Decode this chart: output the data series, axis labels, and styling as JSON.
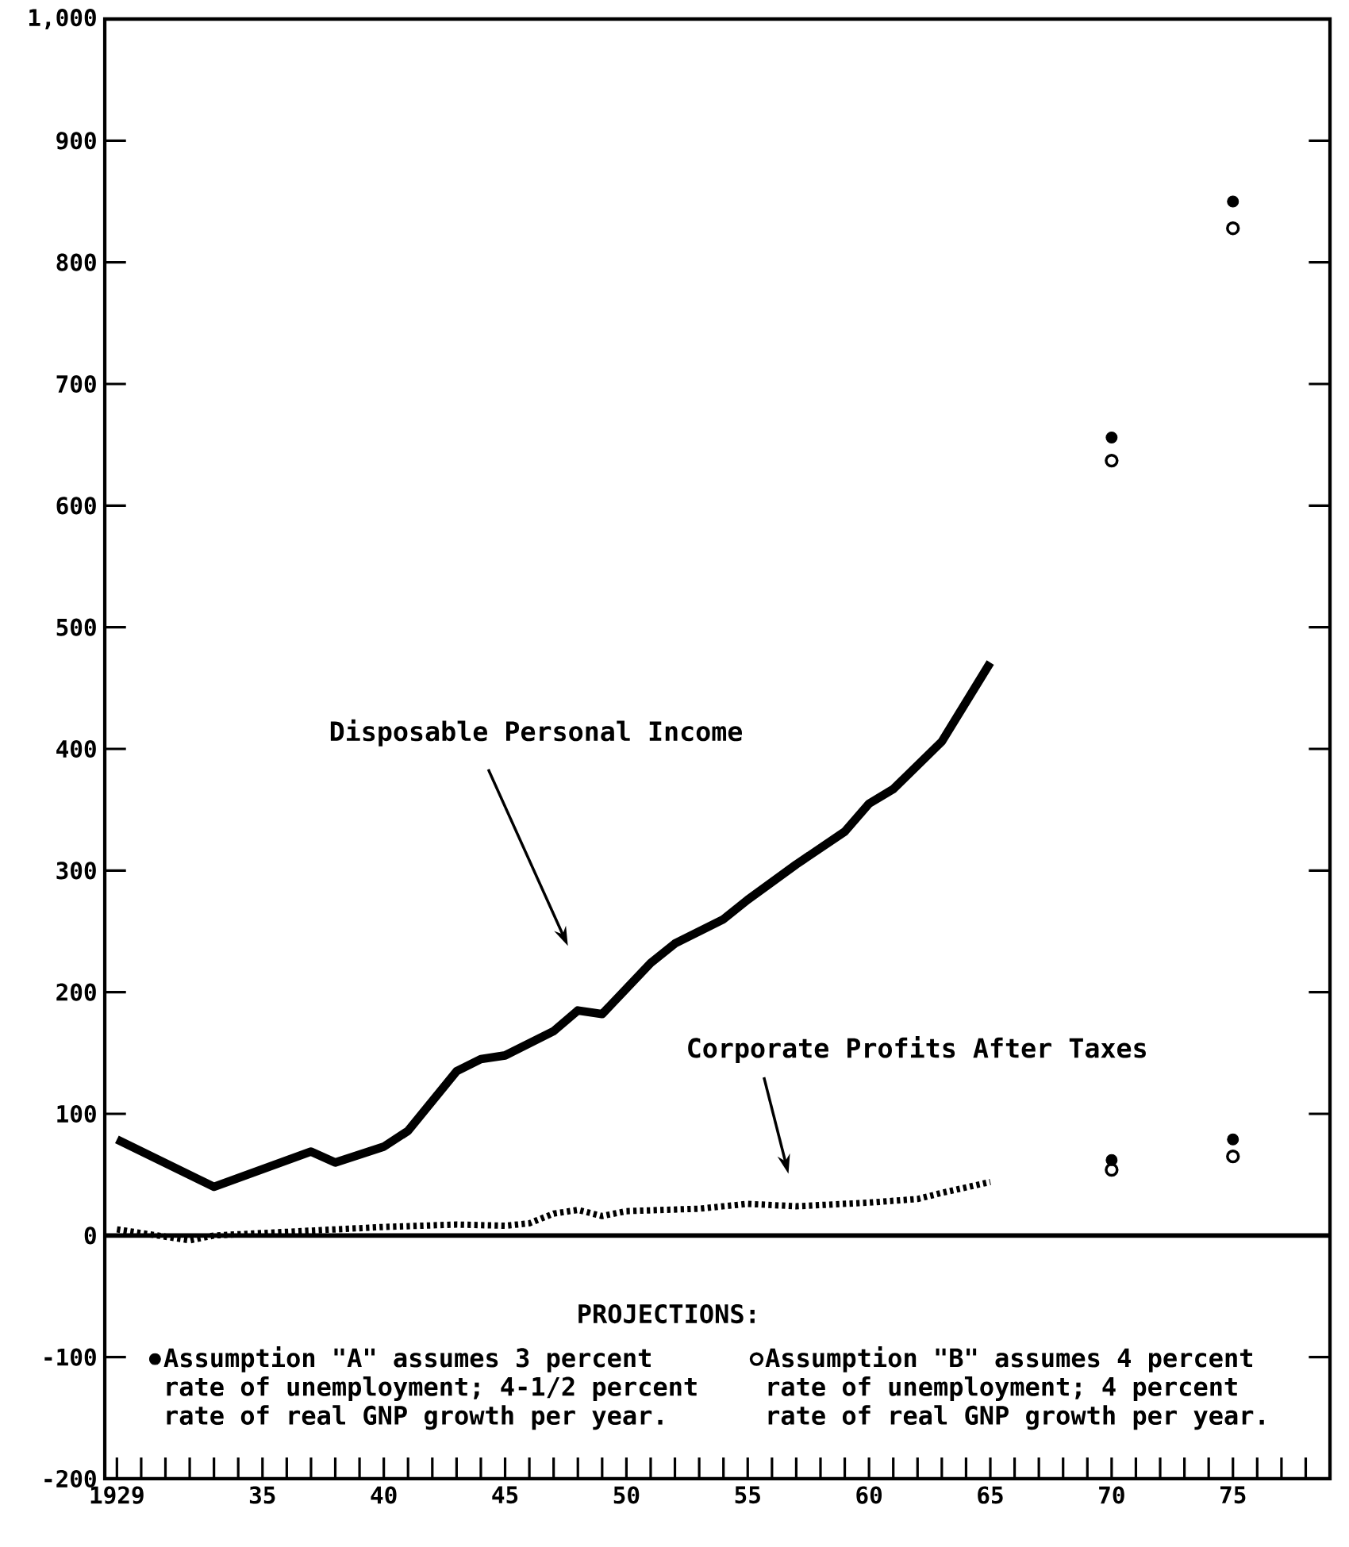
{
  "chart_data": {
    "type": "line",
    "xlim": [
      1928.5,
      1979
    ],
    "xticks": [
      {
        "value": 1929,
        "label": "1929"
      },
      {
        "value": 1930,
        "label": null
      },
      {
        "value": 1931,
        "label": null
      },
      {
        "value": 1932,
        "label": null
      },
      {
        "value": 1933,
        "label": null
      },
      {
        "value": 1934,
        "label": null
      },
      {
        "value": 1935,
        "label": "35"
      },
      {
        "value": 1936,
        "label": null
      },
      {
        "value": 1937,
        "label": null
      },
      {
        "value": 1938,
        "label": null
      },
      {
        "value": 1939,
        "label": null
      },
      {
        "value": 1940,
        "label": "40"
      },
      {
        "value": 1941,
        "label": null
      },
      {
        "value": 1942,
        "label": null
      },
      {
        "value": 1943,
        "label": null
      },
      {
        "value": 1944,
        "label": null
      },
      {
        "value": 1945,
        "label": "45"
      },
      {
        "value": 1946,
        "label": null
      },
      {
        "value": 1947,
        "label": null
      },
      {
        "value": 1948,
        "label": null
      },
      {
        "value": 1949,
        "label": null
      },
      {
        "value": 1950,
        "label": "50"
      },
      {
        "value": 1951,
        "label": null
      },
      {
        "value": 1952,
        "label": null
      },
      {
        "value": 1953,
        "label": null
      },
      {
        "value": 1954,
        "label": null
      },
      {
        "value": 1955,
        "label": "55"
      },
      {
        "value": 1956,
        "label": null
      },
      {
        "value": 1957,
        "label": null
      },
      {
        "value": 1958,
        "label": null
      },
      {
        "value": 1959,
        "label": null
      },
      {
        "value": 1960,
        "label": "60"
      },
      {
        "value": 1961,
        "label": null
      },
      {
        "value": 1962,
        "label": null
      },
      {
        "value": 1963,
        "label": null
      },
      {
        "value": 1964,
        "label": null
      },
      {
        "value": 1965,
        "label": "65"
      },
      {
        "value": 1966,
        "label": null
      },
      {
        "value": 1967,
        "label": null
      },
      {
        "value": 1968,
        "label": null
      },
      {
        "value": 1969,
        "label": null
      },
      {
        "value": 1970,
        "label": "70"
      },
      {
        "value": 1971,
        "label": null
      },
      {
        "value": 1972,
        "label": null
      },
      {
        "value": 1973,
        "label": null
      },
      {
        "value": 1974,
        "label": null
      },
      {
        "value": 1975,
        "label": "75"
      },
      {
        "value": 1976,
        "label": null
      },
      {
        "value": 1977,
        "label": null
      },
      {
        "value": 1978,
        "label": null
      },
      {
        "value": 1979,
        "label": null
      }
    ],
    "ylim": [
      -200,
      1000
    ],
    "yticks": [
      -200,
      -100,
      0,
      100,
      200,
      300,
      400,
      500,
      600,
      700,
      800,
      900,
      {
        "value": 1000,
        "label": "1,000"
      }
    ],
    "legend": "bottom",
    "marker": "none",
    "legend_title": "PROJECTIONS:",
    "series": [
      {
        "color": "#000000",
        "line_style": "solid",
        "x": [
          1929,
          1933,
          1937,
          1938,
          1940,
          1941,
          1943,
          1944,
          1945,
          1947,
          1948,
          1949,
          1950,
          1951,
          1952,
          1954,
          1955,
          1957,
          1959,
          1960,
          1961,
          1963,
          1965
        ],
        "values": [
          79,
          40,
          69,
          60,
          73,
          86,
          135,
          145,
          148,
          168,
          185,
          182,
          203,
          224,
          240,
          260,
          276,
          305,
          332,
          355,
          367,
          406,
          471
        ]
      },
      {
        "color": "#000000",
        "line_style": "dotted",
        "x": [
          1929,
          1932,
          1933,
          1936,
          1940,
          1943,
          1945,
          1946,
          1947,
          1948,
          1949,
          1950,
          1953,
          1955,
          1957,
          1960,
          1962,
          1963,
          1965
        ],
        "values": [
          5,
          -4,
          0,
          3,
          7,
          9,
          8,
          10,
          18,
          21,
          16,
          20,
          22,
          26,
          24,
          27,
          30,
          35,
          44
        ]
      },
      {
        "type": "scatter",
        "name": "Assumption \"A\" assumes 3 percent rate of unemployment; 4-1/2 percent rate of real GNP growth per year.",
        "color": "#000000",
        "marker": "circle",
        "x": [
          1970,
          1970,
          1975,
          1975
        ],
        "values": [
          656,
          62,
          850,
          79
        ]
      },
      {
        "type": "scatter",
        "name": "Assumption \"B\" assumes 4 percent rate of unemployment; 4 percent rate of real GNP growth per year.",
        "color": "#000000",
        "marker": "circle",
        "x": [
          1970,
          1970,
          1975,
          1975
        ],
        "values": [
          637,
          54,
          828,
          65
        ]
      }
    ],
    "ref_lines": [
      {
        "axis": "y",
        "value": 0,
        "color": "#000000",
        "line_style": "solid"
      }
    ],
    "annotations": [
      "Disposable Personal Income",
      "Corporate Profits After Taxes"
    ]
  }
}
